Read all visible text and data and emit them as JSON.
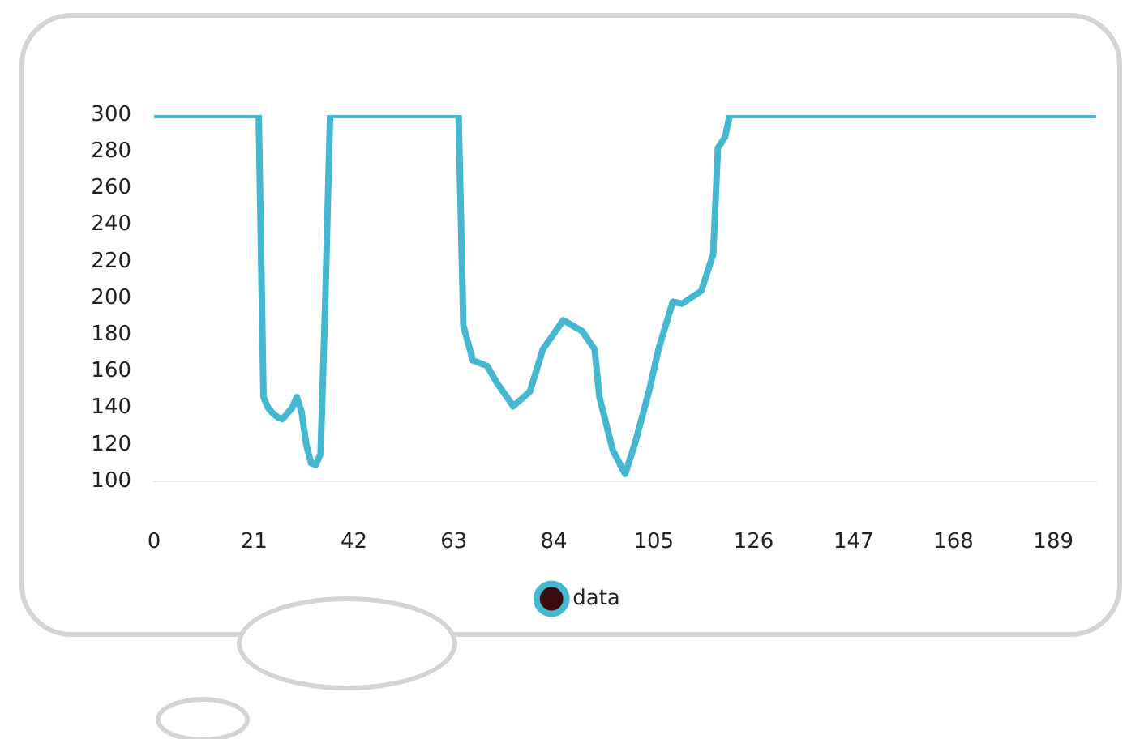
{
  "chart_data": {
    "type": "line",
    "x": [
      0,
      22,
      23,
      24,
      25,
      26,
      27,
      28,
      29,
      30,
      31,
      32,
      33,
      34,
      35,
      36,
      37,
      64,
      65,
      67,
      70,
      72,
      75.5,
      79,
      81.7,
      86,
      90,
      92.6,
      93.6,
      96.4,
      99,
      101,
      104,
      106,
      109,
      111,
      115,
      117.5,
      118.5,
      120,
      121,
      198
    ],
    "series": [
      {
        "name": "data",
        "color": "#45b8d0",
        "values": [
          300,
          300,
          146,
          140,
          137,
          135,
          134,
          137,
          140,
          146,
          138,
          120,
          110,
          109,
          115,
          200,
          300,
          300,
          185,
          166,
          163,
          154,
          141,
          149,
          172,
          188,
          182,
          172,
          146,
          117,
          104,
          120,
          149,
          172,
          198,
          197,
          204,
          224,
          282,
          288,
          300,
          300
        ]
      }
    ],
    "xlim": [
      0,
      198
    ],
    "xticks": [
      0,
      21,
      42,
      63,
      84,
      105,
      126,
      147,
      168,
      189
    ],
    "ylim": [
      100,
      300
    ],
    "yticks": [
      100,
      120,
      140,
      160,
      180,
      200,
      220,
      240,
      260,
      280,
      300
    ],
    "grid": false,
    "legend": "bottom"
  }
}
